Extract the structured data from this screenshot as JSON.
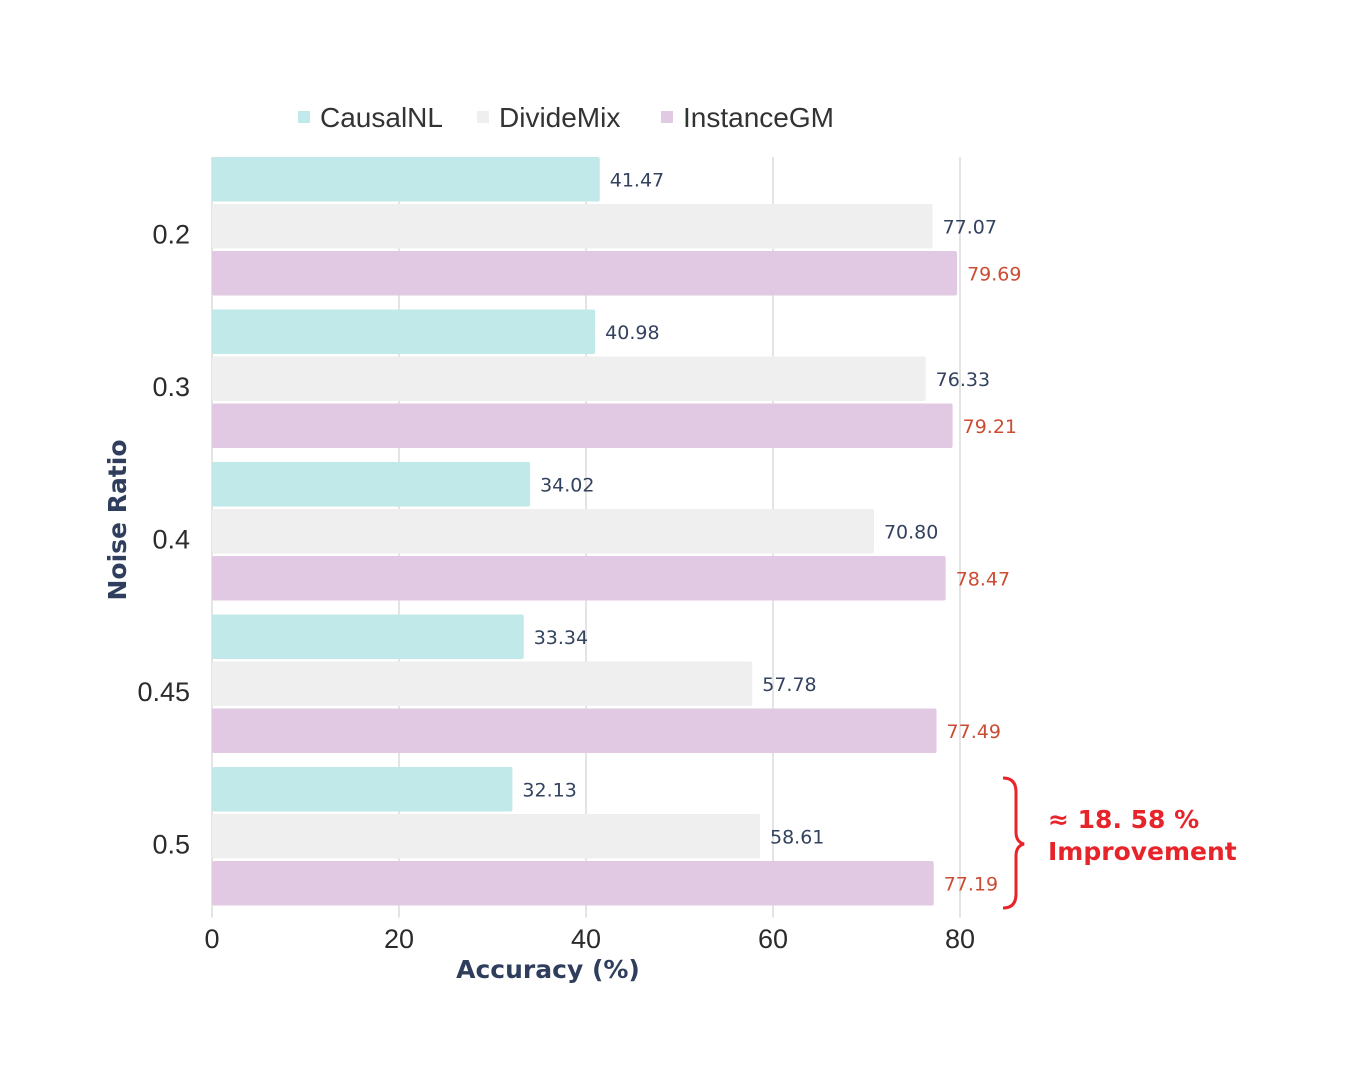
{
  "chart_data": {
    "type": "bar",
    "orientation": "horizontal",
    "categories": [
      "0.2",
      "0.3",
      "0.4",
      "0.45",
      "0.5"
    ],
    "series": [
      {
        "name": "CausalNL",
        "values": [
          41.47,
          40.98,
          34.02,
          33.34,
          32.13
        ],
        "labels": [
          "41.47",
          "40.98",
          "34.02",
          "33.34",
          "32.13"
        ],
        "color": "#c1e9ea",
        "label_color": "#33425f"
      },
      {
        "name": "DivideMix",
        "values": [
          77.07,
          76.33,
          70.8,
          57.78,
          58.61
        ],
        "labels": [
          "77.07",
          "76.33",
          "70.80",
          "57.78",
          "58.61"
        ],
        "color": "#f0eff0",
        "label_color": "#33425f"
      },
      {
        "name": "InstanceGM",
        "values": [
          79.69,
          79.21,
          78.47,
          77.49,
          77.19
        ],
        "labels": [
          "79.69",
          "79.21",
          "78.47",
          "77.49",
          "77.19"
        ],
        "color": "#e2c9e3",
        "label_color": "#cb4c33"
      }
    ],
    "xlabel": "Accuracy (%)",
    "ylabel": "Noise Ratio",
    "xlim": [
      0,
      80
    ],
    "xticks": [
      "0",
      "20",
      "40",
      "60",
      "80"
    ],
    "grid": "vertical",
    "legend_position": "top",
    "annotation": {
      "lines": [
        "≈ 18. 58 %",
        "Improvement"
      ],
      "color": "#e8242b",
      "category": "0.5"
    }
  }
}
